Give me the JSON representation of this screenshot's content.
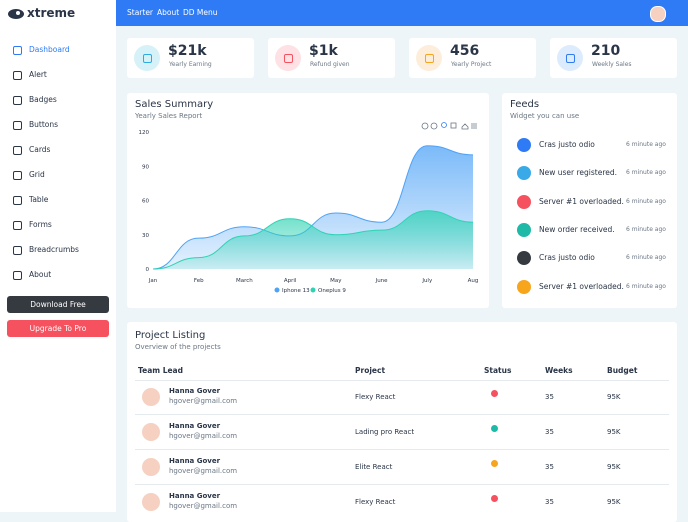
{
  "brand": "xtreme",
  "topbar": {
    "links": [
      "Starter",
      "About",
      "DD Menu"
    ]
  },
  "sidebar": {
    "items": [
      "Dashboard",
      "Alert",
      "Badges",
      "Buttons",
      "Cards",
      "Grid",
      "Table",
      "Forms",
      "Breadcrumbs",
      "About"
    ],
    "buttons": [
      "Download Free",
      "Upgrade To Pro"
    ]
  },
  "stats": [
    {
      "value": "$21k",
      "label": "Yearly Earning",
      "color": "#2cabe3",
      "bg": "#d6f2f8"
    },
    {
      "value": "$1k",
      "label": "Refund given",
      "color": "#f5515f",
      "bg": "#fde1e4"
    },
    {
      "value": "456",
      "label": "Yearly Project",
      "color": "#f6a51c",
      "bg": "#fdeedb"
    },
    {
      "value": "210",
      "label": "Weekly Sales",
      "color": "#2f7bf5",
      "bg": "#dcecfd"
    }
  ],
  "chart_data": {
    "type": "area",
    "title": "Sales Summary",
    "subtitle": "Yearly Sales Report",
    "categories": [
      "Jan",
      "Feb",
      "March",
      "April",
      "May",
      "June",
      "July",
      "Aug"
    ],
    "series": [
      {
        "name": "Iphone 13",
        "color": "#4fa3f7",
        "values": [
          0,
          27,
          37,
          29,
          49,
          41,
          108,
          100
        ]
      },
      {
        "name": "Oneplus 9",
        "color": "#2fd3b3",
        "values": [
          0,
          10,
          29,
          44,
          30,
          34,
          51,
          41
        ]
      }
    ],
    "ylim": [
      0,
      120
    ],
    "yticks": [
      0,
      30,
      60,
      90,
      120
    ],
    "grid": false
  },
  "feeds": {
    "title": "Feeds",
    "subtitle": "Widget you can use",
    "items": [
      {
        "text": "Cras justo odio",
        "time": "6 minute ago",
        "color": "#2f7bf5"
      },
      {
        "text": "New user registered.",
        "time": "6 minute ago",
        "color": "#39a9e8"
      },
      {
        "text": "Server #1 overloaded.",
        "time": "6 minute ago",
        "color": "#f5515f"
      },
      {
        "text": "New order received.",
        "time": "6 minute ago",
        "color": "#1fb9a7"
      },
      {
        "text": "Cras justo odio",
        "time": "6 minute ago",
        "color": "#343a40"
      },
      {
        "text": "Server #1 overloaded.",
        "time": "6 minute ago",
        "color": "#f6a51c"
      }
    ]
  },
  "projects": {
    "title": "Project Listing",
    "subtitle": "Overview of the projects",
    "columns": [
      "Team Lead",
      "Project",
      "Status",
      "Weeks",
      "Budget"
    ],
    "rows": [
      {
        "name": "Hanna Gover",
        "email": "hgover@gmail.com",
        "project": "Flexy React",
        "status_color": "#f5515f",
        "weeks": 35,
        "budget": "95K"
      },
      {
        "name": "Hanna Gover",
        "email": "hgover@gmail.com",
        "project": "Lading pro React",
        "status_color": "#1fb9a7",
        "weeks": 35,
        "budget": "95K"
      },
      {
        "name": "Hanna Gover",
        "email": "hgover@gmail.com",
        "project": "Elite React",
        "status_color": "#f6a51c",
        "weeks": 35,
        "budget": "95K"
      },
      {
        "name": "Hanna Gover",
        "email": "hgover@gmail.com",
        "project": "Flexy React",
        "status_color": "#f5515f",
        "weeks": 35,
        "budget": "95K"
      }
    ]
  }
}
